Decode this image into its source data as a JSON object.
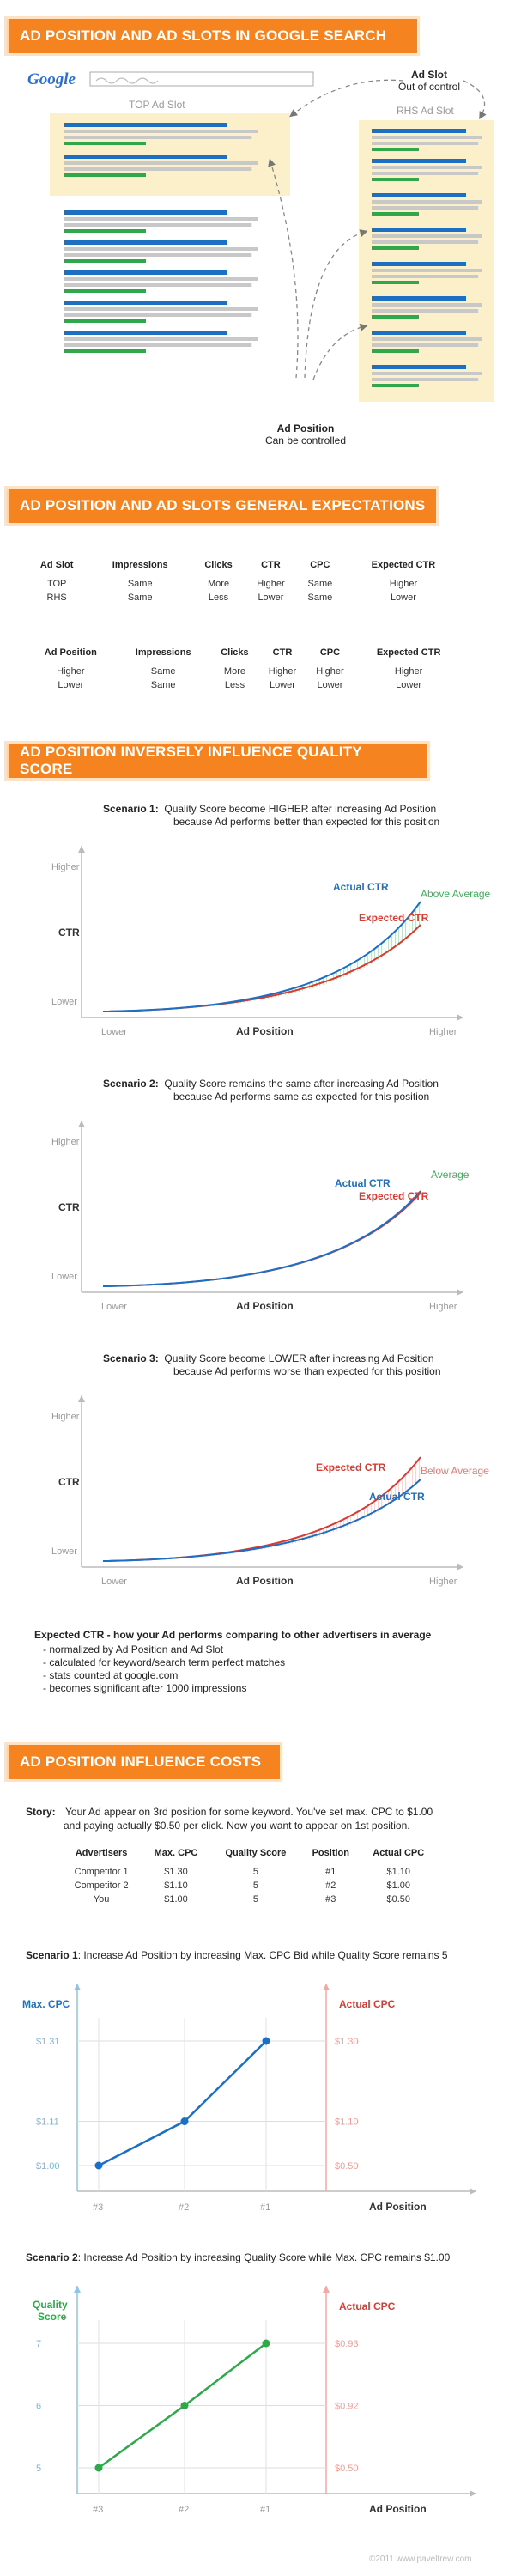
{
  "sec1": {
    "title": "AD POSITION AND AD SLOTS IN GOOGLE SEARCH",
    "logo": "Google",
    "top_label": "TOP Ad Slot",
    "rhs_label": "RHS Ad Slot",
    "adslot_title": "Ad Slot",
    "adslot_sub": "Out of control",
    "adpos_title": "Ad Position",
    "adpos_sub": "Can be controlled",
    "colors": {
      "slot_bg": "#fbf0c9",
      "blue": "#1d6fc4",
      "green": "#2ea84a",
      "gray": "#c8c8c8"
    }
  },
  "sec2": {
    "title": "AD POSITION AND AD SLOTS GENERAL EXPECTATIONS",
    "table1": {
      "headers": [
        "Ad Slot",
        "Impressions",
        "Clicks",
        "CTR",
        "CPC",
        "Expected CTR"
      ],
      "rows": [
        [
          "TOP",
          "Same",
          "More",
          "Higher",
          "Same",
          "Higher"
        ],
        [
          "RHS",
          "Same",
          "Less",
          "Lower",
          "Same",
          "Lower"
        ]
      ]
    },
    "table2": {
      "headers": [
        "Ad Position",
        "Impressions",
        "Clicks",
        "CTR",
        "CPC",
        "Expected CTR"
      ],
      "rows": [
        [
          "Higher",
          "Same",
          "More",
          "Higher",
          "Higher",
          "Higher"
        ],
        [
          "Lower",
          "Same",
          "Less",
          "Lower",
          "Lower",
          "Lower"
        ]
      ]
    }
  },
  "sec3": {
    "title": "AD POSITION INVERSELY INFLUENCE QUALITY SCORE",
    "scenarios": [
      {
        "label": "Scenario 1:",
        "line1": "Quality Score become HIGHER after increasing Ad Position",
        "line2": "because Ad performs better than expected for this position",
        "actual": "Actual CTR",
        "expected": "Expected CTR",
        "tag": "Above Average",
        "tag_color": "#3caf5a"
      },
      {
        "label": "Scenario 2:",
        "line1": "Quality Score remains the same after increasing Ad Position",
        "line2": "because Ad performs same as expected for this position",
        "actual": "Actual CTR",
        "expected": "Expected CTR",
        "tag": "Average",
        "tag_color": "#3caf5a"
      },
      {
        "label": "Scenario 3:",
        "line1": "Quality Score become LOWER after increasing Ad Position",
        "line2": "because Ad performs worse than expected for this position",
        "actual": "Actual CTR",
        "expected": "Expected CTR",
        "tag": "Below Average",
        "tag_color": "#e67b73"
      }
    ],
    "axis": {
      "higher": "Higher",
      "lower": "Lower",
      "ctr": "CTR",
      "xlabel": "Ad Position",
      "xlow": "Lower",
      "xhigh": "Higher"
    },
    "note_title": "Expected CTR - how your Ad performs comparing to other advertisers in average",
    "notes": [
      "- normalized by Ad Position and Ad Slot",
      "- calculated for keyword/search term perfect matches",
      "- stats counted at google.com",
      "- becomes significant after 1000 impressions"
    ]
  },
  "sec4": {
    "title": "AD POSITION INFLUENCE COSTS",
    "story_label": "Story:",
    "story_line1": "Your Ad appear on 3rd position for some keyword. You've set max. CPC to $1.00",
    "story_line2": "and paying actually $0.50 per click. Now you want to appear on 1st position.",
    "table": {
      "headers": [
        "Advertisers",
        "Max. CPC",
        "Quality Score",
        "Position",
        "Actual CPC"
      ],
      "rows": [
        [
          "Competitor 1",
          "$1.30",
          "5",
          "#1",
          "$1.10"
        ],
        [
          "Competitor 2",
          "$1.10",
          "5",
          "#2",
          "$1.00"
        ],
        [
          "You",
          "$1.00",
          "5",
          "#3",
          "$0.50"
        ]
      ]
    },
    "scenario1": {
      "label": "Scenario 1",
      "text": ": Increase Ad Position by increasing Max. CPC Bid while Quality Score remains 5",
      "left_axis": "Max. CPC",
      "right_axis": "Actual CPC",
      "left_ticks": [
        "$1.31",
        "$1.11",
        "$1.00"
      ],
      "right_ticks": [
        "$1.30",
        "$1.10",
        "$0.50"
      ],
      "x_ticks": [
        "#3",
        "#2",
        "#1"
      ],
      "xlabel": "Ad Position",
      "values": [
        1.0,
        1.11,
        1.31
      ],
      "color": "#1d6fc4"
    },
    "scenario2": {
      "label": "Scenario 2",
      "text": ": Increase Ad Position by increasing Quality Score while Max. CPC remains $1.00",
      "left_axis_1": "Quality",
      "left_axis_2": "Score",
      "right_axis": "Actual CPC",
      "left_ticks": [
        "7",
        "6",
        "5"
      ],
      "right_ticks": [
        "$0.93",
        "$0.92",
        "$0.50"
      ],
      "x_ticks": [
        "#3",
        "#2",
        "#1"
      ],
      "xlabel": "Ad Position",
      "values": [
        5,
        6,
        7
      ],
      "color": "#2ea84a"
    }
  },
  "footer": "©2011 www.paveltrew.com"
}
